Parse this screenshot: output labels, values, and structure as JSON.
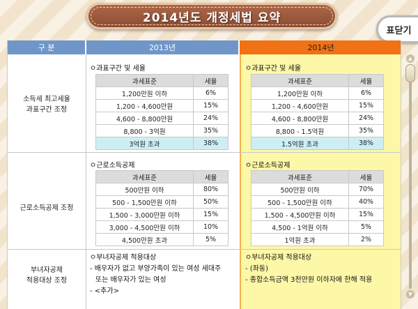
{
  "title": "2014년도 개정세법 요약",
  "close_label": "표닫기",
  "header": {
    "category": "구 분",
    "y2013": "2013년",
    "y2014": "2014년"
  },
  "rows": [
    {
      "category_lines": [
        "소득세 최고세율",
        "과표구간 조정"
      ],
      "left": {
        "subtitle": "ㅇ과표구간 및 세율",
        "head": [
          "과세표준",
          "세율"
        ],
        "rows": [
          [
            "1,200만원 이하",
            "6%"
          ],
          [
            "1,200 - 4,600만원",
            "15%"
          ],
          [
            "4,600 - 8,800만원",
            "24%"
          ],
          [
            "8,800 - 3억원",
            "35%"
          ],
          [
            "3억원 초과",
            "38%"
          ]
        ]
      },
      "right": {
        "subtitle": "ㅇ과표구간 및 세율",
        "head": [
          "과세표준",
          "세율"
        ],
        "rows": [
          [
            "1,200만원 이하",
            "6%"
          ],
          [
            "1,200 - 4,600만원",
            "15%"
          ],
          [
            "4,600 - 8,800만원",
            "24%"
          ],
          [
            "8,800 - 1.5억원",
            "35%"
          ],
          [
            "1.5억원 초과",
            "38%"
          ]
        ]
      }
    },
    {
      "category_lines": [
        "근로소득공제 조정"
      ],
      "left": {
        "subtitle": "ㅇ근로소득공제",
        "head": [
          "과세표준",
          "세율"
        ],
        "rows": [
          [
            "500만원 이하",
            "80%"
          ],
          [
            "500 - 1,500만원 이하",
            "50%"
          ],
          [
            "1,500 - 3,000만원 이하",
            "15%"
          ],
          [
            "3,000 - 4,500만원 이하",
            "10%"
          ],
          [
            "4,500만원 초과",
            "5%"
          ]
        ]
      },
      "right": {
        "subtitle": "ㅇ근로소득공제",
        "head": [
          "과세표준",
          "세율"
        ],
        "rows": [
          [
            "500만원 이하",
            "70%"
          ],
          [
            "500 - 1,500만원 이하",
            "40%"
          ],
          [
            "1,500 - 4,500만원 이하",
            "15%"
          ],
          [
            "4,500 - 1억원 이하",
            "5%"
          ],
          [
            "1억원 초과",
            "2%"
          ]
        ]
      }
    },
    {
      "category_lines": [
        "부녀자공제",
        "적용대상 조정"
      ],
      "left_lines": [
        "ㅇ부녀자공제 적용대상",
        "- 배우자가 없고 부양가족이 있는 여성 세대주",
        "  또는 배우자가 있는 여성",
        "- <추가>"
      ],
      "right_lines": [
        "ㅇ부녀자공제 적용대상",
        "- (좌동)",
        "- 종합소득금액 3천만원 이하자에 한해 적용"
      ]
    }
  ],
  "scrollbar": {
    "up_icon": "▲",
    "down_icon": "▼"
  }
}
